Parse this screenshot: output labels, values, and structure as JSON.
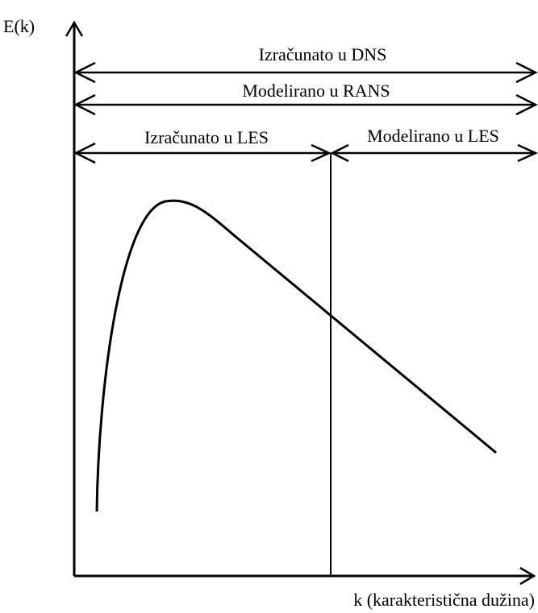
{
  "y_axis_label": "E(k)",
  "x_axis_label": "k (karakteristična dužina)",
  "ranges": [
    {
      "label": "Izračunato u DNS"
    },
    {
      "label": "Modelirano u RANS"
    },
    {
      "label": "Izračunato u LES"
    },
    {
      "label": "Modelirano u LES"
    }
  ]
}
